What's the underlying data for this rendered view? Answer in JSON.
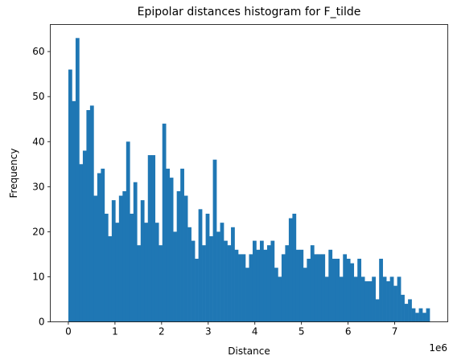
{
  "chart_data": {
    "type": "bar",
    "title": "Epipolar distances histogram for F_tilde",
    "xlabel": "Distance",
    "ylabel": "Frequency",
    "offset_label": "1e6",
    "bar_color": "#1f77b4",
    "bins": 100,
    "bin_start": 0,
    "bin_width": 77500,
    "values": [
      56,
      49,
      63,
      35,
      38,
      47,
      48,
      28,
      33,
      34,
      24,
      19,
      27,
      22,
      28,
      29,
      40,
      24,
      31,
      17,
      27,
      22,
      37,
      37,
      22,
      17,
      44,
      34,
      32,
      20,
      29,
      34,
      28,
      21,
      18,
      14,
      25,
      17,
      24,
      19,
      36,
      20,
      22,
      18,
      17,
      21,
      16,
      15,
      15,
      12,
      15,
      18,
      16,
      18,
      16,
      17,
      18,
      12,
      10,
      15,
      17,
      23,
      24,
      16,
      16,
      12,
      14,
      17,
      15,
      15,
      15,
      10,
      16,
      14,
      14,
      10,
      15,
      14,
      13,
      10,
      14,
      10,
      9,
      9,
      10,
      5,
      14,
      10,
      9,
      10,
      8,
      10,
      6,
      4,
      5,
      3,
      2,
      3,
      2,
      3
    ],
    "xlim": [
      -0.3875,
      8.1375
    ],
    "ylim": [
      0,
      66
    ],
    "xticks": [
      "0",
      "1",
      "2",
      "3",
      "4",
      "5",
      "6",
      "7"
    ],
    "yticks": [
      "0",
      "10",
      "20",
      "30",
      "40",
      "50",
      "60"
    ],
    "grid": false,
    "legend": false
  }
}
